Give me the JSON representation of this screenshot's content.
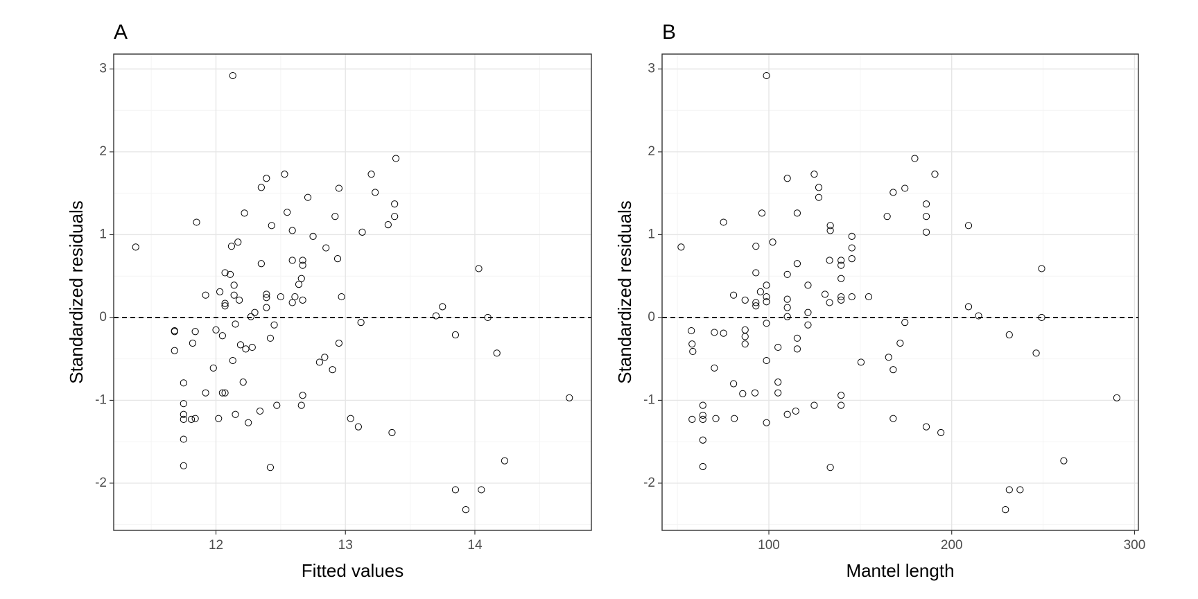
{
  "chart_data": [
    {
      "type": "scatter",
      "title": "A",
      "xlabel": "Fitted values",
      "ylabel": "Standardized residuals",
      "x": [
        11.38,
        11.85,
        12.13,
        11.68,
        11.68,
        11.68,
        11.75,
        11.75,
        11.75,
        11.75,
        11.75,
        11.75,
        11.82,
        11.84,
        11.81,
        11.84,
        11.92,
        11.92,
        11.98,
        12.0,
        12.02,
        12.03,
        12.05,
        12.05,
        12.07,
        12.07,
        12.07,
        12.07,
        12.11,
        12.12,
        12.17,
        12.14,
        12.14,
        12.13,
        12.15,
        12.15,
        12.18,
        12.19,
        12.22,
        12.21,
        12.23,
        12.25,
        12.28,
        12.27,
        12.3,
        12.34,
        12.35,
        12.35,
        12.39,
        12.39,
        12.39,
        12.39,
        12.42,
        12.43,
        12.45,
        12.42,
        12.47,
        12.5,
        12.53,
        12.55,
        12.59,
        12.59,
        12.59,
        12.61,
        12.64,
        12.67,
        12.66,
        12.67,
        12.67,
        12.66,
        12.67,
        12.71,
        12.75,
        12.8,
        12.84,
        12.85,
        12.9,
        12.92,
        12.94,
        12.95,
        12.95,
        12.97,
        13.04,
        13.1,
        13.12,
        13.13,
        13.2,
        13.23,
        13.33,
        13.36,
        13.38,
        13.38,
        13.39,
        13.7,
        13.75,
        13.85,
        13.85,
        13.93,
        14.03,
        14.05,
        14.1,
        14.17,
        14.23,
        14.73
      ],
      "y": [
        0.85,
        1.15,
        2.92,
        -0.17,
        -0.16,
        -0.4,
        -0.79,
        -1.04,
        -1.17,
        -1.23,
        -1.47,
        -1.79,
        -0.31,
        -0.17,
        -1.23,
        -1.22,
        0.27,
        -0.91,
        -0.61,
        -0.15,
        -1.22,
        0.31,
        -0.22,
        -0.91,
        -0.91,
        0.54,
        0.14,
        0.17,
        0.52,
        0.86,
        0.91,
        0.39,
        0.27,
        -0.52,
        -0.08,
        -1.17,
        0.21,
        -0.33,
        1.26,
        -0.78,
        -0.38,
        -1.27,
        -0.36,
        0.01,
        0.06,
        -1.13,
        0.65,
        1.57,
        1.68,
        0.28,
        0.24,
        0.12,
        -0.25,
        1.11,
        -0.09,
        -1.81,
        -1.06,
        0.25,
        1.73,
        1.27,
        1.05,
        0.69,
        0.18,
        0.25,
        0.4,
        0.21,
        0.47,
        0.69,
        0.63,
        -1.06,
        -0.94,
        1.45,
        0.98,
        -0.54,
        -0.48,
        0.84,
        -0.63,
        1.22,
        0.71,
        1.56,
        -0.31,
        0.25,
        -1.22,
        -1.32,
        -0.06,
        1.03,
        1.73,
        1.51,
        1.12,
        -1.39,
        1.22,
        1.37,
        1.92,
        0.02,
        0.13,
        -0.21,
        -2.08,
        -2.32,
        0.59,
        -2.08,
        0.0,
        -0.43,
        -1.73,
        -0.97
      ],
      "xlim": [
        11.21,
        14.9
      ],
      "ylim": [
        -2.57,
        3.18
      ],
      "xticks": [
        12,
        13,
        14
      ],
      "yticks": [
        -2,
        -1,
        0,
        1,
        2,
        3
      ],
      "xminor": [
        11.5,
        12.5,
        13.5,
        14.5
      ],
      "yminor": [
        -2.5,
        -1.5,
        -0.5,
        0.5,
        1.5,
        2.5
      ],
      "hline": 0,
      "grid": true,
      "marker_color": "#000000"
    },
    {
      "type": "scatter",
      "title": "B",
      "xlabel": "Mantel length",
      "ylabel": "Standardized residuals",
      "x": [
        52,
        57.6,
        58,
        58.4,
        58,
        63.9,
        63.9,
        63.9,
        63.9,
        63.9,
        70.2,
        70.2,
        71,
        75.2,
        75.2,
        80.7,
        80.7,
        81.1,
        85.7,
        87,
        87,
        87,
        87,
        92.4,
        92.9,
        92.9,
        92.9,
        92.9,
        95.4,
        96.2,
        98.7,
        98.7,
        98.7,
        98.7,
        98.7,
        98.7,
        98.7,
        102.1,
        105,
        105,
        105,
        110.1,
        110.1,
        110.1,
        110.1,
        110.1,
        110.1,
        115.5,
        115.5,
        115.5,
        115.5,
        114.7,
        121.4,
        121.4,
        121.4,
        124.8,
        124.8,
        127.3,
        127.3,
        130.7,
        133.2,
        133.6,
        133.6,
        133.2,
        133.6,
        139.5,
        139.5,
        139.5,
        139.5,
        139.5,
        139.5,
        139.5,
        145.4,
        145.4,
        145.4,
        145.4,
        150.4,
        154.6,
        164.7,
        165.5,
        168,
        168,
        168,
        171.8,
        174.4,
        174.4,
        179.8,
        186.1,
        186.1,
        186.1,
        186.1,
        190.8,
        194.1,
        209.2,
        209.2,
        214.7,
        231.5,
        229.4,
        231.5,
        237.4,
        246.2,
        249.2,
        249.2,
        261.3,
        290.3
      ],
      "y": [
        0.85,
        -0.16,
        -0.32,
        -0.41,
        -1.23,
        -1.06,
        -1.18,
        -1.23,
        -1.48,
        -1.8,
        -0.18,
        -0.61,
        -1.22,
        -0.19,
        1.15,
        0.27,
        -0.8,
        -1.22,
        -0.92,
        0.21,
        -0.15,
        -0.23,
        -0.32,
        -0.91,
        0.54,
        0.86,
        0.14,
        0.18,
        0.31,
        1.26,
        2.92,
        0.25,
        0.19,
        0.39,
        -0.07,
        -0.52,
        -1.27,
        0.91,
        -0.36,
        -0.78,
        -0.91,
        1.68,
        0.52,
        0.22,
        0.12,
        0.01,
        -1.17,
        1.26,
        0.65,
        -0.25,
        -0.38,
        -1.13,
        0.39,
        0.06,
        -0.09,
        1.73,
        -1.06,
        1.57,
        1.45,
        0.28,
        0.18,
        1.11,
        1.05,
        0.69,
        -1.81,
        0.69,
        0.63,
        0.47,
        0.25,
        0.21,
        -0.94,
        -1.06,
        0.98,
        0.84,
        0.71,
        0.25,
        -0.54,
        0.25,
        1.22,
        -0.48,
        1.51,
        -0.63,
        -1.22,
        -0.31,
        1.56,
        -0.06,
        1.92,
        1.37,
        1.22,
        1.03,
        -1.32,
        1.73,
        -1.39,
        1.11,
        0.13,
        0.02,
        -0.21,
        -2.32,
        -2.08,
        -2.08,
        -0.43,
        0.59,
        0.0,
        -1.73,
        -0.97
      ],
      "xlim": [
        41.6,
        302.1
      ],
      "ylim": [
        -2.57,
        3.18
      ],
      "xticks": [
        100,
        200,
        300
      ],
      "yticks": [
        -2,
        -1,
        0,
        1,
        2,
        3
      ],
      "xminor": [
        50,
        150,
        250
      ],
      "yminor": [
        -2.5,
        -1.5,
        -0.5,
        0.5,
        1.5,
        2.5
      ],
      "hline": 0,
      "grid": true,
      "marker_color": "#000000"
    }
  ]
}
